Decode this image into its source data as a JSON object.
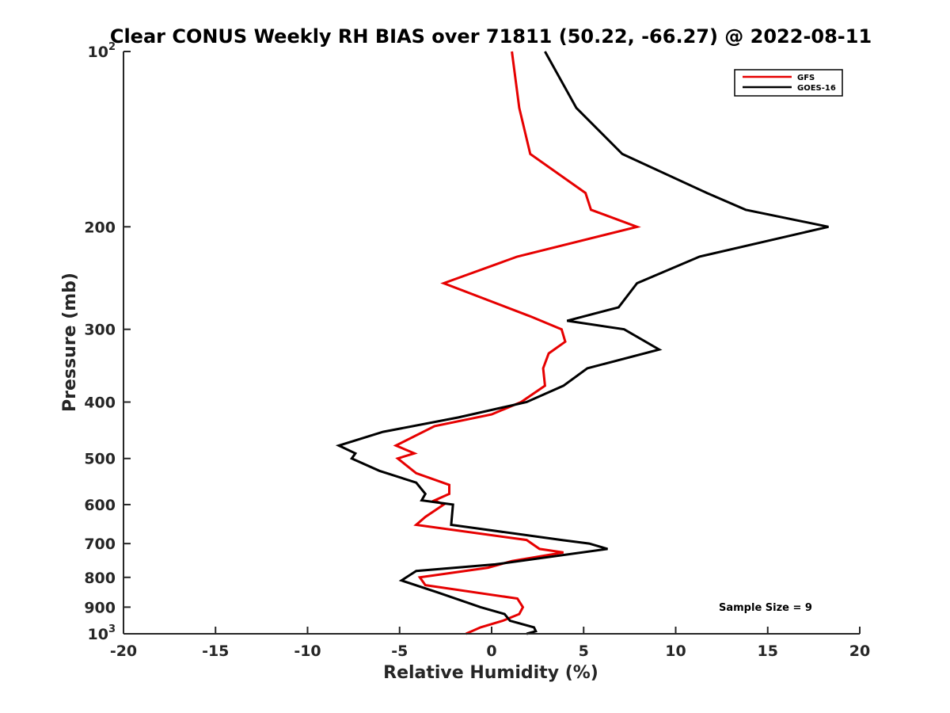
{
  "chart_data": {
    "type": "line",
    "title": "Clear CONUS Weekly RH BIAS over 71811 (50.22, -66.27) @ 2022-08-11",
    "xlabel": "Relative Humidity (%)",
    "ylabel": "Pressure (mb)",
    "xlim": [
      -20,
      20
    ],
    "ylim": [
      100,
      1000
    ],
    "y_scale": "log",
    "y_reversed": true,
    "x_ticks": [
      -20,
      -15,
      -10,
      -5,
      0,
      5,
      10,
      15,
      20
    ],
    "x_tick_labels": [
      "-20",
      "-15",
      "-10",
      "-5",
      "0",
      "5",
      "10",
      "15",
      "20"
    ],
    "y_ticks": [
      100,
      200,
      300,
      400,
      500,
      600,
      700,
      800,
      900,
      1000
    ],
    "y_tick_labels": [
      {
        "base": "10",
        "exp": "2"
      },
      {
        "base": "200",
        "exp": ""
      },
      {
        "base": "300",
        "exp": ""
      },
      {
        "base": "400",
        "exp": ""
      },
      {
        "base": "500",
        "exp": ""
      },
      {
        "base": "600",
        "exp": ""
      },
      {
        "base": "700",
        "exp": ""
      },
      {
        "base": "800",
        "exp": ""
      },
      {
        "base": "900",
        "exp": ""
      },
      {
        "base": "10",
        "exp": "3"
      }
    ],
    "grid": false,
    "legend_position": "top-right",
    "annotation": "Sample Size = 9",
    "series": [
      {
        "name": "GFS",
        "color": "#e60000",
        "points": [
          {
            "x": 1.1,
            "y": 100
          },
          {
            "x": 1.5,
            "y": 125
          },
          {
            "x": 2.1,
            "y": 150
          },
          {
            "x": 5.1,
            "y": 175
          },
          {
            "x": 5.4,
            "y": 187
          },
          {
            "x": 7.9,
            "y": 200
          },
          {
            "x": 1.4,
            "y": 225
          },
          {
            "x": -2.6,
            "y": 250
          },
          {
            "x": 2.1,
            "y": 285
          },
          {
            "x": 3.8,
            "y": 300
          },
          {
            "x": 4.0,
            "y": 315
          },
          {
            "x": 3.1,
            "y": 330
          },
          {
            "x": 2.8,
            "y": 350
          },
          {
            "x": 2.9,
            "y": 375
          },
          {
            "x": 1.6,
            "y": 400
          },
          {
            "x": 0.0,
            "y": 420
          },
          {
            "x": -3.1,
            "y": 440
          },
          {
            "x": -5.2,
            "y": 475
          },
          {
            "x": -4.2,
            "y": 490
          },
          {
            "x": -5.1,
            "y": 500
          },
          {
            "x": -4.1,
            "y": 530
          },
          {
            "x": -2.3,
            "y": 555
          },
          {
            "x": -2.3,
            "y": 575
          },
          {
            "x": -3.1,
            "y": 590
          },
          {
            "x": -2.6,
            "y": 600
          },
          {
            "x": -3.6,
            "y": 630
          },
          {
            "x": -4.1,
            "y": 650
          },
          {
            "x": 1.9,
            "y": 690
          },
          {
            "x": 2.6,
            "y": 715
          },
          {
            "x": 3.9,
            "y": 725
          },
          {
            "x": 1.1,
            "y": 750
          },
          {
            "x": -0.2,
            "y": 770
          },
          {
            "x": -3.9,
            "y": 800
          },
          {
            "x": -3.6,
            "y": 825
          },
          {
            "x": 1.4,
            "y": 870
          },
          {
            "x": 1.7,
            "y": 900
          },
          {
            "x": 1.5,
            "y": 925
          },
          {
            "x": 0.6,
            "y": 950
          },
          {
            "x": -0.6,
            "y": 975
          },
          {
            "x": -1.4,
            "y": 1000
          }
        ]
      },
      {
        "name": "GOES-16",
        "color": "#000000",
        "points": [
          {
            "x": 2.9,
            "y": 100
          },
          {
            "x": 4.6,
            "y": 125
          },
          {
            "x": 7.1,
            "y": 150
          },
          {
            "x": 11.7,
            "y": 175
          },
          {
            "x": 13.8,
            "y": 187
          },
          {
            "x": 18.3,
            "y": 200
          },
          {
            "x": 11.3,
            "y": 225
          },
          {
            "x": 7.9,
            "y": 250
          },
          {
            "x": 6.9,
            "y": 275
          },
          {
            "x": 4.1,
            "y": 290
          },
          {
            "x": 7.2,
            "y": 300
          },
          {
            "x": 9.1,
            "y": 325
          },
          {
            "x": 5.2,
            "y": 350
          },
          {
            "x": 3.9,
            "y": 375
          },
          {
            "x": 1.9,
            "y": 400
          },
          {
            "x": -1.8,
            "y": 425
          },
          {
            "x": -5.9,
            "y": 450
          },
          {
            "x": -8.3,
            "y": 475
          },
          {
            "x": -7.4,
            "y": 490
          },
          {
            "x": -7.6,
            "y": 500
          },
          {
            "x": -6.1,
            "y": 525
          },
          {
            "x": -4.1,
            "y": 550
          },
          {
            "x": -3.6,
            "y": 575
          },
          {
            "x": -3.8,
            "y": 590
          },
          {
            "x": -2.1,
            "y": 600
          },
          {
            "x": -2.2,
            "y": 650
          },
          {
            "x": 3.8,
            "y": 690
          },
          {
            "x": 5.3,
            "y": 700
          },
          {
            "x": 6.3,
            "y": 715
          },
          {
            "x": 0.2,
            "y": 760
          },
          {
            "x": -4.1,
            "y": 780
          },
          {
            "x": -4.9,
            "y": 810
          },
          {
            "x": -2.9,
            "y": 850
          },
          {
            "x": -0.6,
            "y": 900
          },
          {
            "x": 0.7,
            "y": 925
          },
          {
            "x": 1.0,
            "y": 950
          },
          {
            "x": 2.3,
            "y": 975
          },
          {
            "x": 2.4,
            "y": 990
          },
          {
            "x": 1.9,
            "y": 1000
          }
        ]
      }
    ]
  }
}
